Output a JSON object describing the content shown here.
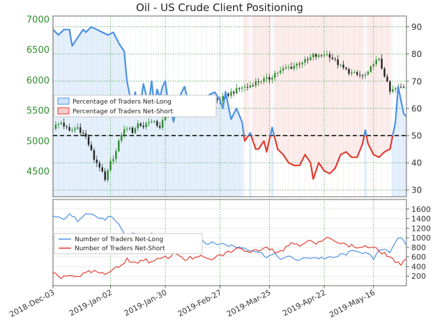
{
  "chart_data": {
    "title": "Oil - US Crude Client Positioning",
    "type": "line",
    "x_axis": {
      "tick_labels": [
        "2018-Dec-03",
        "2019-Jan-02",
        "2019-Jan-30",
        "2019-Feb-27",
        "2019-Mar-25",
        "2019-Apr-22",
        "2019-May-16"
      ],
      "tick_index": [
        0,
        21,
        41,
        61,
        79,
        99,
        117
      ],
      "n_days": 130
    },
    "top_panel": {
      "price_axis": {
        "ylim": [
          4080,
          7050
        ],
        "ticks": [
          4500,
          5000,
          5500,
          6000,
          6500,
          7000
        ],
        "color": "#2e8b2e"
      },
      "percent_axis": {
        "ylim": [
          27.5,
          94
        ],
        "ticks": [
          30,
          40,
          50,
          60,
          70,
          80,
          90
        ],
        "color": "#333333"
      },
      "reference_line": 50,
      "legend": {
        "placement": "left",
        "items": [
          {
            "label": "Percentage of Traders Net-Long",
            "color": "#4a90e2",
            "fill": "#cfe4f7"
          },
          {
            "label": "Percentage of Traders Net-Short",
            "color": "#e03c31",
            "fill": "#f7cdca"
          }
        ]
      },
      "price_anchors": [
        [
          0,
          5220
        ],
        [
          3,
          5300
        ],
        [
          6,
          5150
        ],
        [
          9,
          5220
        ],
        [
          12,
          5060
        ],
        [
          15,
          4700
        ],
        [
          17,
          4580
        ],
        [
          19,
          4340
        ],
        [
          21,
          4640
        ],
        [
          23,
          4820
        ],
        [
          25,
          5120
        ],
        [
          27,
          5220
        ],
        [
          29,
          5150
        ],
        [
          31,
          5280
        ],
        [
          33,
          5230
        ],
        [
          35,
          5330
        ],
        [
          37,
          5290
        ],
        [
          39,
          5230
        ],
        [
          41,
          5410
        ],
        [
          43,
          5470
        ],
        [
          45,
          5540
        ],
        [
          47,
          5580
        ],
        [
          49,
          5560
        ],
        [
          51,
          5620
        ],
        [
          53,
          5660
        ],
        [
          55,
          5640
        ],
        [
          57,
          5690
        ],
        [
          59,
          5680
        ],
        [
          61,
          5670
        ],
        [
          63,
          5740
        ],
        [
          65,
          5790
        ],
        [
          67,
          5830
        ],
        [
          69,
          5880
        ],
        [
          71,
          5880
        ],
        [
          73,
          5940
        ],
        [
          75,
          5980
        ],
        [
          77,
          6000
        ],
        [
          79,
          6020
        ],
        [
          81,
          6110
        ],
        [
          83,
          6140
        ],
        [
          85,
          6200
        ],
        [
          87,
          6210
        ],
        [
          89,
          6260
        ],
        [
          91,
          6300
        ],
        [
          93,
          6320
        ],
        [
          95,
          6400
        ],
        [
          97,
          6380
        ],
        [
          99,
          6430
        ],
        [
          101,
          6400
        ],
        [
          103,
          6310
        ],
        [
          105,
          6220
        ],
        [
          107,
          6160
        ],
        [
          109,
          6110
        ],
        [
          111,
          6080
        ],
        [
          113,
          6060
        ],
        [
          115,
          6100
        ],
        [
          117,
          6290
        ],
        [
          119,
          6320
        ],
        [
          121,
          6080
        ],
        [
          123,
          5800
        ],
        [
          125,
          5860
        ],
        [
          127,
          5880
        ],
        [
          129,
          5900
        ]
      ],
      "percent_anchors": [
        [
          0,
          89
        ],
        [
          2,
          87
        ],
        [
          4,
          89
        ],
        [
          6,
          89
        ],
        [
          7,
          83
        ],
        [
          9,
          86
        ],
        [
          11,
          89
        ],
        [
          12,
          88
        ],
        [
          14,
          90
        ],
        [
          16,
          89
        ],
        [
          18,
          88
        ],
        [
          20,
          87
        ],
        [
          22,
          88
        ],
        [
          24,
          84
        ],
        [
          26,
          81
        ],
        [
          27,
          70
        ],
        [
          28,
          65
        ],
        [
          29,
          58
        ],
        [
          30,
          66
        ],
        [
          31,
          59
        ],
        [
          32,
          62
        ],
        [
          33,
          69
        ],
        [
          34,
          65
        ],
        [
          35,
          62
        ],
        [
          36,
          70
        ],
        [
          37,
          61
        ],
        [
          38,
          67
        ],
        [
          39,
          64
        ],
        [
          40,
          68
        ],
        [
          41,
          70
        ],
        [
          42,
          62
        ],
        [
          43,
          60
        ],
        [
          44,
          55
        ],
        [
          45,
          61
        ],
        [
          47,
          66
        ],
        [
          48,
          68
        ],
        [
          49,
          64
        ],
        [
          50,
          59
        ],
        [
          51,
          61
        ],
        [
          52,
          57
        ],
        [
          54,
          62
        ],
        [
          55,
          63
        ],
        [
          57,
          65
        ],
        [
          59,
          66
        ],
        [
          61,
          63
        ],
        [
          62,
          60
        ],
        [
          63,
          66
        ],
        [
          65,
          56
        ],
        [
          67,
          60
        ],
        [
          69,
          55
        ],
        [
          70,
          48
        ],
        [
          72,
          51
        ],
        [
          74,
          45
        ],
        [
          75,
          45
        ],
        [
          77,
          48
        ],
        [
          78,
          44
        ],
        [
          80,
          53
        ],
        [
          82,
          45
        ],
        [
          84,
          43
        ],
        [
          86,
          40
        ],
        [
          88,
          39
        ],
        [
          90,
          39
        ],
        [
          92,
          43
        ],
        [
          94,
          40
        ],
        [
          95,
          34
        ],
        [
          97,
          40
        ],
        [
          99,
          37
        ],
        [
          101,
          36
        ],
        [
          103,
          38
        ],
        [
          105,
          43
        ],
        [
          107,
          44
        ],
        [
          109,
          42
        ],
        [
          111,
          42
        ],
        [
          113,
          47
        ],
        [
          114,
          52
        ],
        [
          115,
          47
        ],
        [
          117,
          43
        ],
        [
          119,
          42
        ],
        [
          121,
          44
        ],
        [
          123,
          45
        ],
        [
          125,
          55
        ],
        [
          126,
          68
        ],
        [
          127,
          63
        ],
        [
          128,
          58
        ],
        [
          129,
          57
        ]
      ]
    },
    "bottom_panel": {
      "ylim": [
        0,
        1800
      ],
      "ticks": [
        200,
        400,
        600,
        800,
        1000,
        1200,
        1400,
        1600
      ],
      "legend": {
        "placement": "left",
        "items": [
          {
            "label": "Number of Traders Net-Long",
            "color": "#4a90e2"
          },
          {
            "label": "Number of Traders Net-Short",
            "color": "#e03c31"
          }
        ]
      },
      "long_anchors": [
        [
          0,
          1450
        ],
        [
          3,
          1390
        ],
        [
          6,
          1470
        ],
        [
          9,
          1370
        ],
        [
          12,
          1540
        ],
        [
          15,
          1470
        ],
        [
          18,
          1380
        ],
        [
          21,
          1430
        ],
        [
          24,
          1260
        ],
        [
          27,
          1020
        ],
        [
          30,
          1110
        ],
        [
          33,
          980
        ],
        [
          36,
          1080
        ],
        [
          39,
          1040
        ],
        [
          42,
          900
        ],
        [
          45,
          980
        ],
        [
          48,
          930
        ],
        [
          51,
          880
        ],
        [
          54,
          960
        ],
        [
          57,
          880
        ],
        [
          60,
          880
        ],
        [
          63,
          860
        ],
        [
          66,
          820
        ],
        [
          69,
          800
        ],
        [
          72,
          760
        ],
        [
          75,
          700
        ],
        [
          78,
          620
        ],
        [
          81,
          640
        ],
        [
          84,
          560
        ],
        [
          87,
          600
        ],
        [
          90,
          520
        ],
        [
          93,
          600
        ],
        [
          96,
          580
        ],
        [
          99,
          580
        ],
        [
          102,
          570
        ],
        [
          105,
          640
        ],
        [
          108,
          680
        ],
        [
          111,
          740
        ],
        [
          114,
          680
        ],
        [
          117,
          560
        ],
        [
          120,
          780
        ],
        [
          123,
          720
        ],
        [
          126,
          1020
        ],
        [
          128,
          920
        ],
        [
          129,
          800
        ]
      ],
      "short_anchors": [
        [
          0,
          240
        ],
        [
          3,
          180
        ],
        [
          6,
          220
        ],
        [
          9,
          160
        ],
        [
          12,
          270
        ],
        [
          15,
          300
        ],
        [
          18,
          250
        ],
        [
          21,
          300
        ],
        [
          24,
          380
        ],
        [
          27,
          560
        ],
        [
          30,
          460
        ],
        [
          33,
          560
        ],
        [
          36,
          480
        ],
        [
          39,
          560
        ],
        [
          42,
          600
        ],
        [
          45,
          680
        ],
        [
          48,
          560
        ],
        [
          51,
          580
        ],
        [
          54,
          600
        ],
        [
          57,
          540
        ],
        [
          60,
          600
        ],
        [
          63,
          680
        ],
        [
          66,
          740
        ],
        [
          69,
          780
        ],
        [
          72,
          700
        ],
        [
          75,
          760
        ],
        [
          78,
          820
        ],
        [
          81,
          720
        ],
        [
          84,
          740
        ],
        [
          87,
          900
        ],
        [
          90,
          860
        ],
        [
          93,
          950
        ],
        [
          96,
          860
        ],
        [
          99,
          960
        ],
        [
          102,
          1000
        ],
        [
          105,
          880
        ],
        [
          108,
          840
        ],
        [
          111,
          800
        ],
        [
          114,
          820
        ],
        [
          117,
          780
        ],
        [
          120,
          700
        ],
        [
          123,
          600
        ],
        [
          126,
          460
        ],
        [
          127,
          400
        ],
        [
          129,
          580
        ]
      ]
    }
  }
}
